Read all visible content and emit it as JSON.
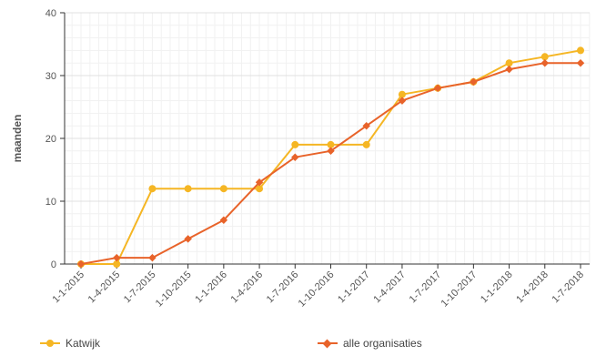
{
  "chart_data": {
    "type": "line",
    "ylabel": "maanden",
    "ylim": [
      0,
      40
    ],
    "yticks": [
      "0",
      "10",
      "20",
      "30",
      "40"
    ],
    "grid": true,
    "categories": [
      "1-1-2015",
      "1-4-2015",
      "1-7-2015",
      "1-10-2015",
      "1-1-2016",
      "1-4-2016",
      "1-7-2016",
      "1-10-2016",
      "1-1-2017",
      "1-4-2017",
      "1-7-2017",
      "1-10-2017",
      "1-1-2018",
      "1-4-2018",
      "1-7-2018"
    ],
    "series": [
      {
        "name": "Katwijk",
        "color": "#f5b624",
        "marker": "circle",
        "values": [
          0,
          0,
          12,
          12,
          12,
          12,
          19,
          19,
          19,
          27,
          28,
          29,
          32,
          33,
          34
        ]
      },
      {
        "name": "alle organisaties",
        "color": "#e8632a",
        "marker": "diamond",
        "values": [
          0,
          1,
          1,
          4,
          7,
          13,
          17,
          18,
          22,
          26,
          28,
          29,
          31,
          32,
          32
        ]
      }
    ],
    "legend_position": "bottom"
  }
}
